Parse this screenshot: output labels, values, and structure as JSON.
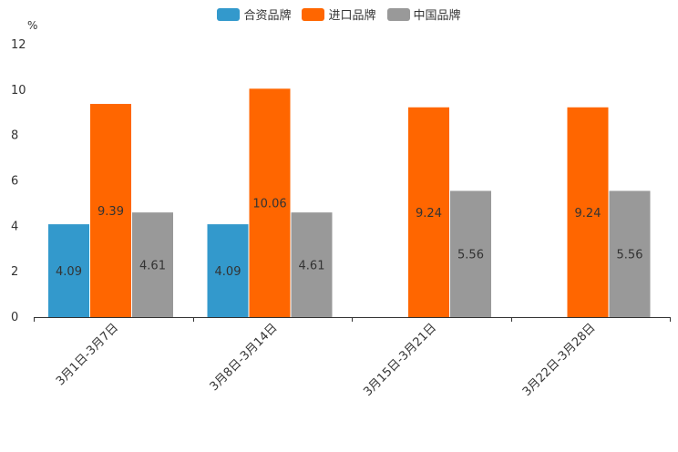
{
  "chart_data": {
    "type": "bar",
    "unit": "%",
    "categories": [
      "3月1日-3月7日",
      "3月8日-3月14日",
      "3月15日-3月21日",
      "3月22日-3月28日"
    ],
    "series": [
      {
        "name": "合资品牌",
        "color": "#3399CC",
        "values": [
          4.09,
          4.09,
          null,
          null
        ]
      },
      {
        "name": "进口品牌",
        "color": "#FF6600",
        "values": [
          9.39,
          10.06,
          9.24,
          9.24
        ]
      },
      {
        "name": "中国品牌",
        "color": "#999999",
        "values": [
          4.61,
          4.61,
          5.56,
          5.56
        ]
      }
    ],
    "ylim": [
      0,
      12
    ],
    "yticks": [
      0,
      2,
      4,
      6,
      8,
      10,
      12
    ],
    "legend_position": "top"
  }
}
